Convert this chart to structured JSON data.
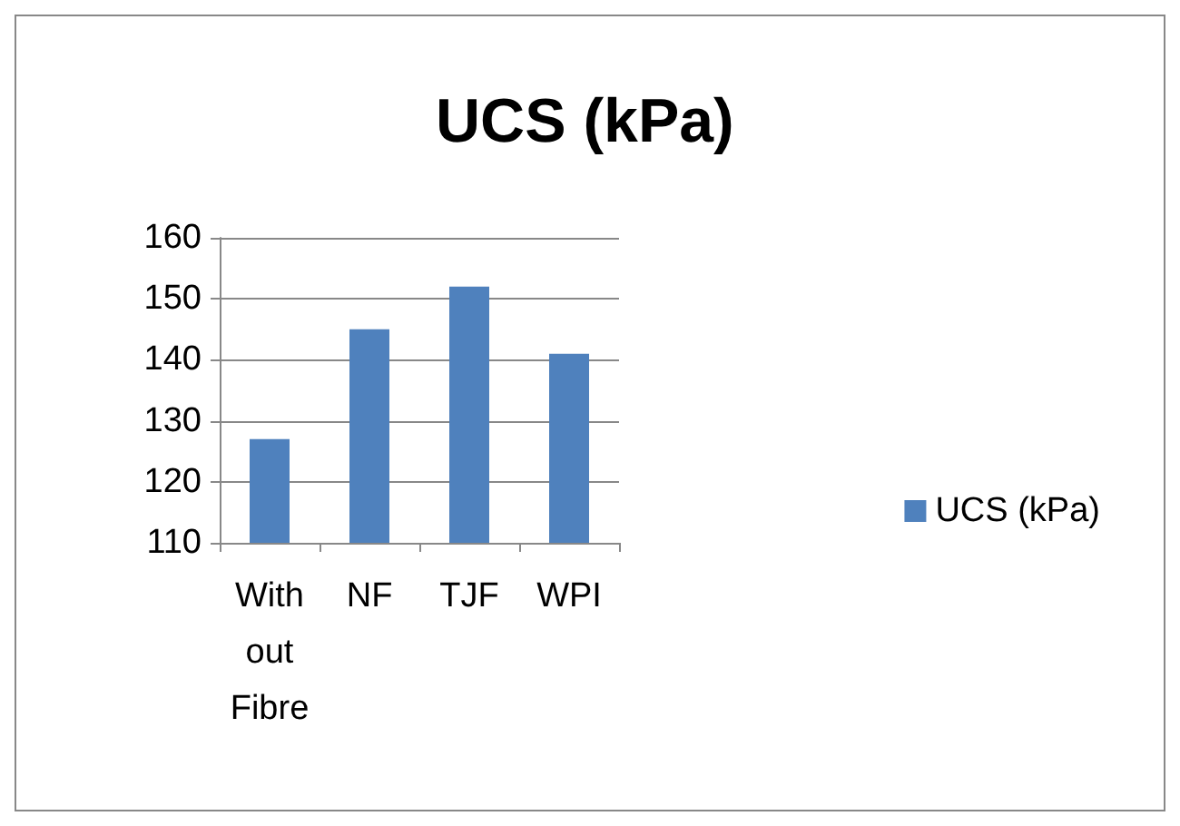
{
  "chart_data": {
    "type": "bar",
    "title": "UCS (kPa)",
    "categories": [
      "With out Fibre",
      "NF",
      "TJF",
      "WPI"
    ],
    "series": [
      {
        "name": "UCS (kPa)",
        "color": "#4f81bd",
        "values": [
          127,
          145,
          152,
          141
        ]
      }
    ],
    "ylim": [
      110,
      160
    ],
    "yticks": [
      110,
      120,
      130,
      140,
      150,
      160
    ],
    "grid": "y",
    "legend": "right"
  }
}
